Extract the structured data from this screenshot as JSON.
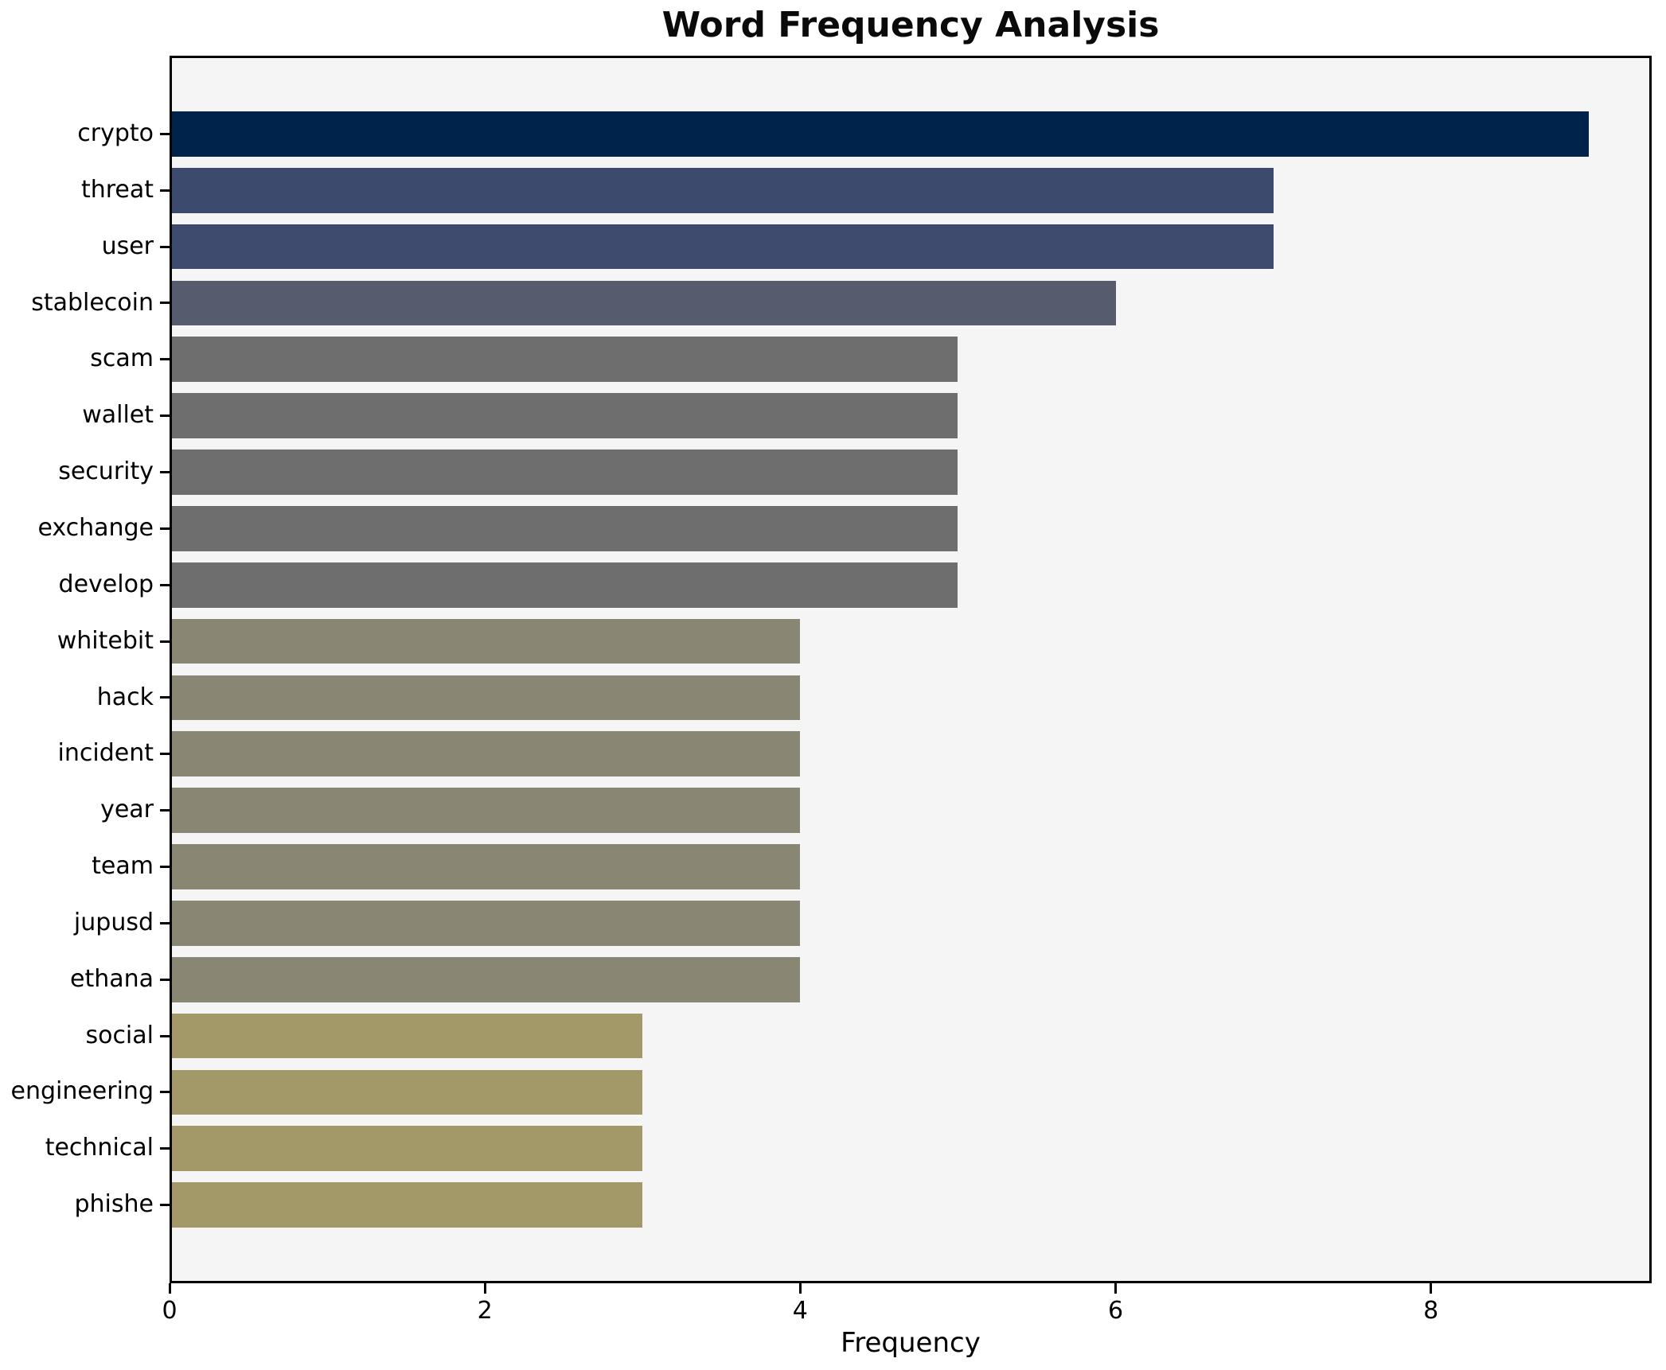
{
  "chart_data": {
    "type": "bar",
    "orientation": "horizontal",
    "title": "Word Frequency Analysis",
    "xlabel": "Frequency",
    "ylabel": "",
    "categories": [
      "crypto",
      "threat",
      "user",
      "stablecoin",
      "scam",
      "wallet",
      "security",
      "exchange",
      "develop",
      "whitebit",
      "hack",
      "incident",
      "year",
      "team",
      "jupusd",
      "ethana",
      "social",
      "engineering",
      "technical",
      "phishe"
    ],
    "values": [
      9,
      7,
      7,
      6,
      5,
      5,
      5,
      5,
      5,
      4,
      4,
      4,
      4,
      4,
      4,
      4,
      3,
      3,
      3,
      3
    ],
    "bar_colors": [
      "#00234b",
      "#3c4a6d",
      "#3e4b6e",
      "#565c6e",
      "#6e6e6e",
      "#6e6e6e",
      "#6e6e6e",
      "#6e6e6e",
      "#6e6e6e",
      "#8a8674",
      "#8a8674",
      "#8a8674",
      "#8a8674",
      "#8a8674",
      "#8a8674",
      "#8a8674",
      "#a39868",
      "#a39868",
      "#a39868",
      "#a39868"
    ],
    "xlim": [
      0,
      9.4
    ],
    "x_ticks": [
      0,
      2,
      4,
      6,
      8
    ],
    "grid": false,
    "legend": null,
    "plot_background": "#f5f5f6",
    "figure_background": "#ffffff",
    "spine_color": "#000000",
    "text_color": "#000000"
  },
  "layout_note": "bars sorted descending by frequency, darkest color = highest frequency"
}
